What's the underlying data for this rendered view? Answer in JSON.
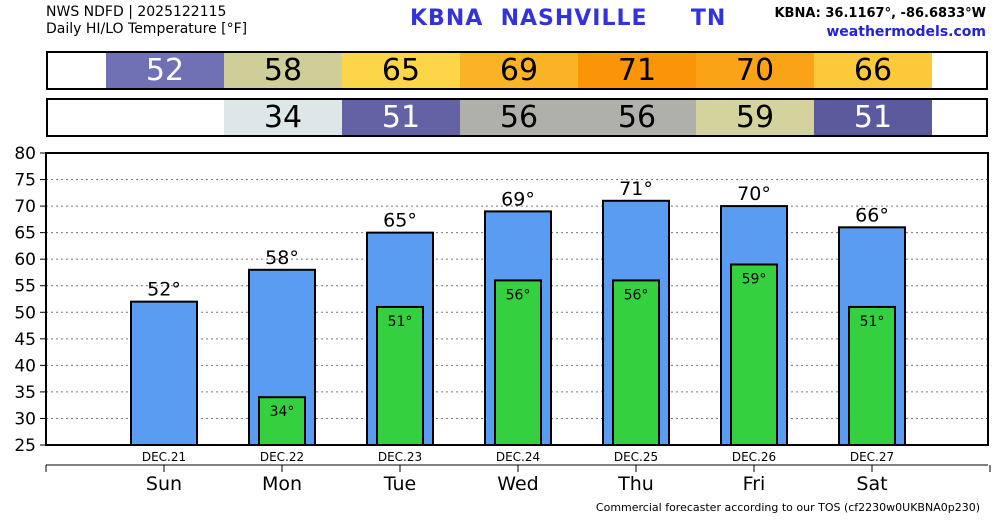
{
  "header": {
    "line1": "NWS NDFD | 2025122115",
    "line2": "Daily HI/LO Temperature [°F]",
    "title": "KBNA  NASHVILLE     TN",
    "coords": "KBNA: 36.1167°, -86.6833°W",
    "site": "weathermodels.com"
  },
  "hi_strip": [
    {
      "value": "52",
      "bg": "#7070b4",
      "fg": "#ffffff"
    },
    {
      "value": "58",
      "bg": "#cfce98",
      "fg": "#000000"
    },
    {
      "value": "65",
      "bg": "#fdd548",
      "fg": "#000000"
    },
    {
      "value": "69",
      "bg": "#f9b324",
      "fg": "#000000"
    },
    {
      "value": "71",
      "bg": "#fa9409",
      "fg": "#000000"
    },
    {
      "value": "70",
      "bg": "#fba317",
      "fg": "#000000"
    },
    {
      "value": "66",
      "bg": "#fcc93a",
      "fg": "#000000"
    }
  ],
  "lo_strip": [
    {
      "value": "",
      "bg": "#ffffff",
      "fg": "#000000"
    },
    {
      "value": "34",
      "bg": "#dde7e7",
      "fg": "#000000"
    },
    {
      "value": "51",
      "bg": "#6262a4",
      "fg": "#ffffff"
    },
    {
      "value": "56",
      "bg": "#b0b0ab",
      "fg": "#000000"
    },
    {
      "value": "56",
      "bg": "#b0b0ab",
      "fg": "#000000"
    },
    {
      "value": "59",
      "bg": "#d4d39e",
      "fg": "#000000"
    },
    {
      "value": "51",
      "bg": "#5a5a9c",
      "fg": "#ffffff"
    }
  ],
  "chart_data": {
    "type": "bar",
    "categories": [
      "DEC.21",
      "DEC.22",
      "DEC.23",
      "DEC.24",
      "DEC.25",
      "DEC.26",
      "DEC.27"
    ],
    "days": [
      "Sun",
      "Mon",
      "Tue",
      "Wed",
      "Thu",
      "Fri",
      "Sat"
    ],
    "series": [
      {
        "values": [
          52,
          58,
          65,
          69,
          71,
          70,
          66
        ],
        "labels": [
          "52°",
          "58°",
          "65°",
          "69°",
          "71°",
          "70°",
          "66°"
        ],
        "color": "#5a9cf2"
      },
      {
        "values": [
          null,
          34,
          51,
          56,
          56,
          59,
          51
        ],
        "labels": [
          "",
          "34°",
          "51°",
          "56°",
          "56°",
          "59°",
          "51°"
        ],
        "color": "#35d03f"
      }
    ],
    "ylim": [
      25,
      80
    ],
    "yticks": [
      "25",
      "30",
      "35",
      "40",
      "45",
      "50",
      "55",
      "60",
      "65",
      "70",
      "75",
      "80"
    ],
    "grid": true
  },
  "footer": "Commercial forecaster according to our TOS (cf2230w0UKBNA0p230)"
}
